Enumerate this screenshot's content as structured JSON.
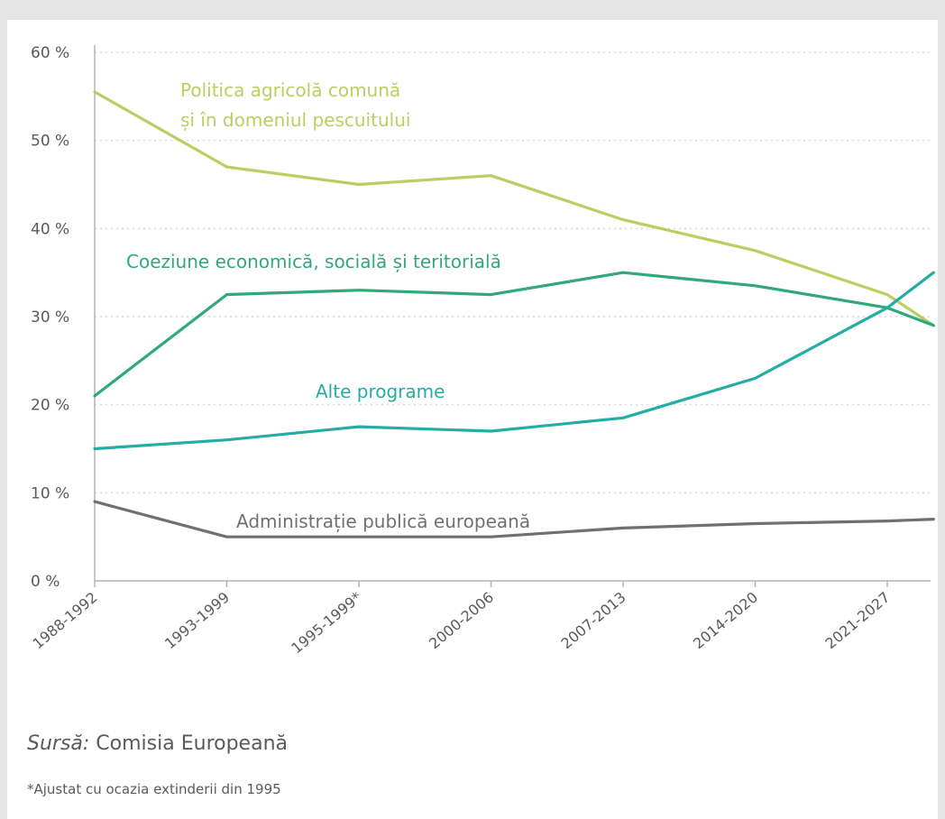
{
  "colors": {
    "agriculture": "#bccd62",
    "cohesion": "#2fa87a",
    "other": "#24ada5",
    "administration": "#707070",
    "text": "#5a5a5a",
    "grid": "#d9d9d9",
    "axis": "#b4b4b4"
  },
  "chart_data": {
    "type": "line",
    "categories": [
      "1988-1992",
      "1993-1999",
      "1995-1999*",
      "2000-2006",
      "2007-2013",
      "2014-2020",
      "2021-2027"
    ],
    "y_ticks": [
      "0 %",
      "10 %",
      "20 %",
      "30 %",
      "40 %",
      "50 %",
      "60 %"
    ],
    "ylim": [
      0,
      60
    ],
    "grid": "horizontal dotted",
    "series": [
      {
        "key": "agriculture",
        "name_lines": [
          "Politica agricolă comună",
          "și în domeniul pescuitului"
        ],
        "x": [
          0,
          1,
          2,
          3,
          4,
          5,
          6,
          6.35
        ],
        "values": [
          55.5,
          47,
          45,
          46,
          41,
          37.5,
          32.5,
          29
        ]
      },
      {
        "key": "cohesion",
        "name_lines": [
          "Coeziune economică, socială și teritorială"
        ],
        "x": [
          0,
          1,
          2,
          3,
          4,
          5,
          6,
          6.35
        ],
        "values": [
          21,
          32.5,
          33,
          32.5,
          35,
          33.5,
          31,
          29
        ]
      },
      {
        "key": "other",
        "name_lines": [
          "Alte programe"
        ],
        "x": [
          0,
          1,
          2,
          3,
          4,
          5,
          6,
          6.35
        ],
        "values": [
          15,
          16,
          17.5,
          17,
          18.5,
          23,
          31,
          35
        ]
      },
      {
        "key": "administration",
        "name_lines": [
          "Administrație publică europeană"
        ],
        "x": [
          0,
          1,
          2,
          3,
          4,
          5,
          6,
          6.35
        ],
        "values": [
          9,
          5,
          5,
          5,
          6,
          6.5,
          6.8,
          7
        ]
      }
    ]
  },
  "source": {
    "prefix": "Sursă:",
    "text": " Comisia Europeană"
  },
  "footnote": "*Ajustat cu ocazia extinderii din 1995"
}
